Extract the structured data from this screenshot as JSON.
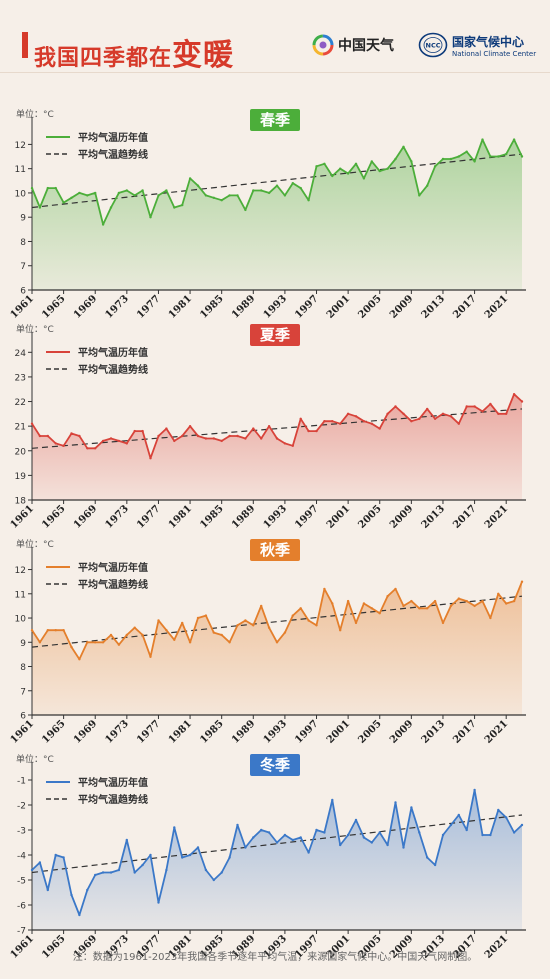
{
  "header": {
    "title_main": "我国四季都在",
    "title_emph": "变暖",
    "logo1_text": "中国天气",
    "logo2_cn": "国家气候中心",
    "logo2_en": "National Climate Center"
  },
  "footer": {
    "note": "注：数据为1961-2023年我国各季节逐年平均气温，来源国家气候中心。中国天气网制图。"
  },
  "colors": {
    "spring": "#4cae3a",
    "summer": "#d8433a",
    "autumn": "#e47f2c",
    "winter": "#3b78c8",
    "title": "#d63a2a",
    "background": "#f6efe8"
  },
  "chart_data": [
    {
      "type": "line",
      "season": "春季",
      "title": "春季",
      "unit_label": "单位：°C",
      "legend": [
        "平均气温历年值",
        "平均气温趋势线"
      ],
      "x_tick_labels": [
        "1961",
        "1965",
        "1969",
        "1973",
        "1977",
        "1981",
        "1985",
        "1989",
        "1993",
        "1997",
        "2001",
        "2005",
        "2009",
        "2013",
        "2017",
        "2021"
      ],
      "y_ticks": [
        6,
        7,
        8,
        9,
        10,
        11,
        12
      ],
      "ylim": [
        6,
        12.8
      ],
      "trend": [
        9.4,
        11.6
      ],
      "x_start": 1961,
      "values": [
        10.2,
        9.4,
        10.2,
        10.2,
        9.6,
        9.8,
        10.0,
        9.9,
        10.0,
        8.7,
        9.4,
        10.0,
        10.1,
        9.9,
        10.1,
        9.0,
        9.9,
        10.1,
        9.4,
        9.5,
        10.6,
        10.3,
        9.9,
        9.8,
        9.7,
        9.9,
        9.9,
        9.3,
        10.1,
        10.1,
        10.0,
        10.3,
        9.9,
        10.4,
        10.2,
        9.7,
        11.1,
        11.2,
        10.7,
        11.0,
        10.8,
        11.2,
        10.6,
        11.3,
        10.9,
        11.0,
        11.4,
        11.9,
        11.3,
        9.9,
        10.3,
        11.1,
        11.4,
        11.4,
        11.5,
        11.7,
        11.3,
        12.2,
        11.5,
        11.5,
        11.6,
        12.2,
        11.5
      ]
    },
    {
      "type": "line",
      "season": "夏季",
      "title": "夏季",
      "unit_label": "单位：°C",
      "legend": [
        "平均气温历年值",
        "平均气温趋势线"
      ],
      "x_tick_labels": [
        "1961",
        "1965",
        "1969",
        "1973",
        "1977",
        "1981",
        "1985",
        "1989",
        "1993",
        "1997",
        "2001",
        "2005",
        "2009",
        "2013",
        "2017",
        "2021"
      ],
      "y_ticks": [
        18,
        19,
        20,
        21,
        22,
        23,
        24
      ],
      "ylim": [
        18,
        24.5
      ],
      "trend": [
        20.1,
        21.7
      ],
      "x_start": 1961,
      "values": [
        21.1,
        20.6,
        20.6,
        20.3,
        20.2,
        20.7,
        20.6,
        20.1,
        20.1,
        20.4,
        20.5,
        20.4,
        20.3,
        20.8,
        20.8,
        19.7,
        20.6,
        20.9,
        20.4,
        20.6,
        21.0,
        20.6,
        20.5,
        20.5,
        20.4,
        20.6,
        20.6,
        20.5,
        20.9,
        20.5,
        21.0,
        20.5,
        20.3,
        20.2,
        21.3,
        20.8,
        20.8,
        21.2,
        21.2,
        21.1,
        21.5,
        21.4,
        21.2,
        21.1,
        20.9,
        21.5,
        21.8,
        21.5,
        21.2,
        21.3,
        21.7,
        21.3,
        21.5,
        21.4,
        21.1,
        21.8,
        21.8,
        21.6,
        21.9,
        21.5,
        21.5,
        22.3,
        22.0
      ]
    },
    {
      "type": "line",
      "season": "秋季",
      "title": "秋季",
      "unit_label": "单位：°C",
      "legend": [
        "平均气温历年值",
        "平均气温趋势线"
      ],
      "x_tick_labels": [
        "1961",
        "1965",
        "1969",
        "1973",
        "1977",
        "1981",
        "1985",
        "1989",
        "1993",
        "1997",
        "2001",
        "2005",
        "2009",
        "2013",
        "2017",
        "2021"
      ],
      "y_ticks": [
        6,
        7,
        8,
        9,
        10,
        11,
        12
      ],
      "ylim": [
        6,
        12.6
      ],
      "trend": [
        8.8,
        10.9
      ],
      "x_start": 1961,
      "values": [
        9.5,
        9.0,
        9.5,
        9.5,
        9.5,
        8.8,
        8.3,
        9.0,
        9.0,
        9.0,
        9.3,
        8.9,
        9.3,
        9.6,
        9.3,
        8.4,
        9.9,
        9.5,
        9.1,
        9.8,
        9.0,
        10.0,
        10.1,
        9.4,
        9.3,
        9.0,
        9.7,
        9.9,
        9.7,
        10.5,
        9.6,
        9.0,
        9.4,
        10.1,
        10.4,
        9.9,
        9.7,
        11.2,
        10.6,
        9.5,
        10.7,
        9.8,
        10.6,
        10.4,
        10.2,
        10.9,
        11.2,
        10.5,
        10.7,
        10.4,
        10.4,
        10.7,
        9.8,
        10.5,
        10.8,
        10.7,
        10.5,
        10.7,
        10.0,
        11.0,
        10.6,
        10.7,
        11.5
      ]
    },
    {
      "type": "line",
      "season": "冬季",
      "title": "冬季",
      "unit_label": "单位：°C",
      "legend": [
        "平均气温历年值",
        "平均气温趋势线"
      ],
      "x_tick_labels": [
        "1961",
        "1965",
        "1969",
        "1973",
        "1977",
        "1981",
        "1985",
        "1989",
        "1993",
        "1997",
        "2001",
        "2005",
        "2009",
        "2013",
        "2017",
        "2021"
      ],
      "y_ticks": [
        -7,
        -6,
        -5,
        -4,
        -3,
        -2,
        -1
      ],
      "ylim": [
        -7,
        -0.6
      ],
      "trend": [
        -4.7,
        -2.4
      ],
      "x_start": 1961,
      "values": [
        -4.6,
        -4.3,
        -5.4,
        -4.0,
        -4.1,
        -5.6,
        -6.4,
        -5.4,
        -4.8,
        -4.7,
        -4.7,
        -4.6,
        -3.4,
        -4.7,
        -4.4,
        -4.0,
        -5.9,
        -4.6,
        -2.9,
        -4.1,
        -4.0,
        -3.7,
        -4.6,
        -5.0,
        -4.7,
        -4.1,
        -2.8,
        -3.7,
        -3.3,
        -3.0,
        -3.1,
        -3.5,
        -3.2,
        -3.4,
        -3.3,
        -3.9,
        -3.0,
        -3.1,
        -1.8,
        -3.6,
        -3.2,
        -2.6,
        -3.3,
        -3.5,
        -3.1,
        -3.6,
        -1.9,
        -3.7,
        -2.1,
        -3.1,
        -4.1,
        -4.4,
        -3.2,
        -2.8,
        -2.4,
        -3.0,
        -1.4,
        -3.2,
        -3.2,
        -2.2,
        -2.5,
        -3.1,
        -2.8
      ]
    }
  ]
}
